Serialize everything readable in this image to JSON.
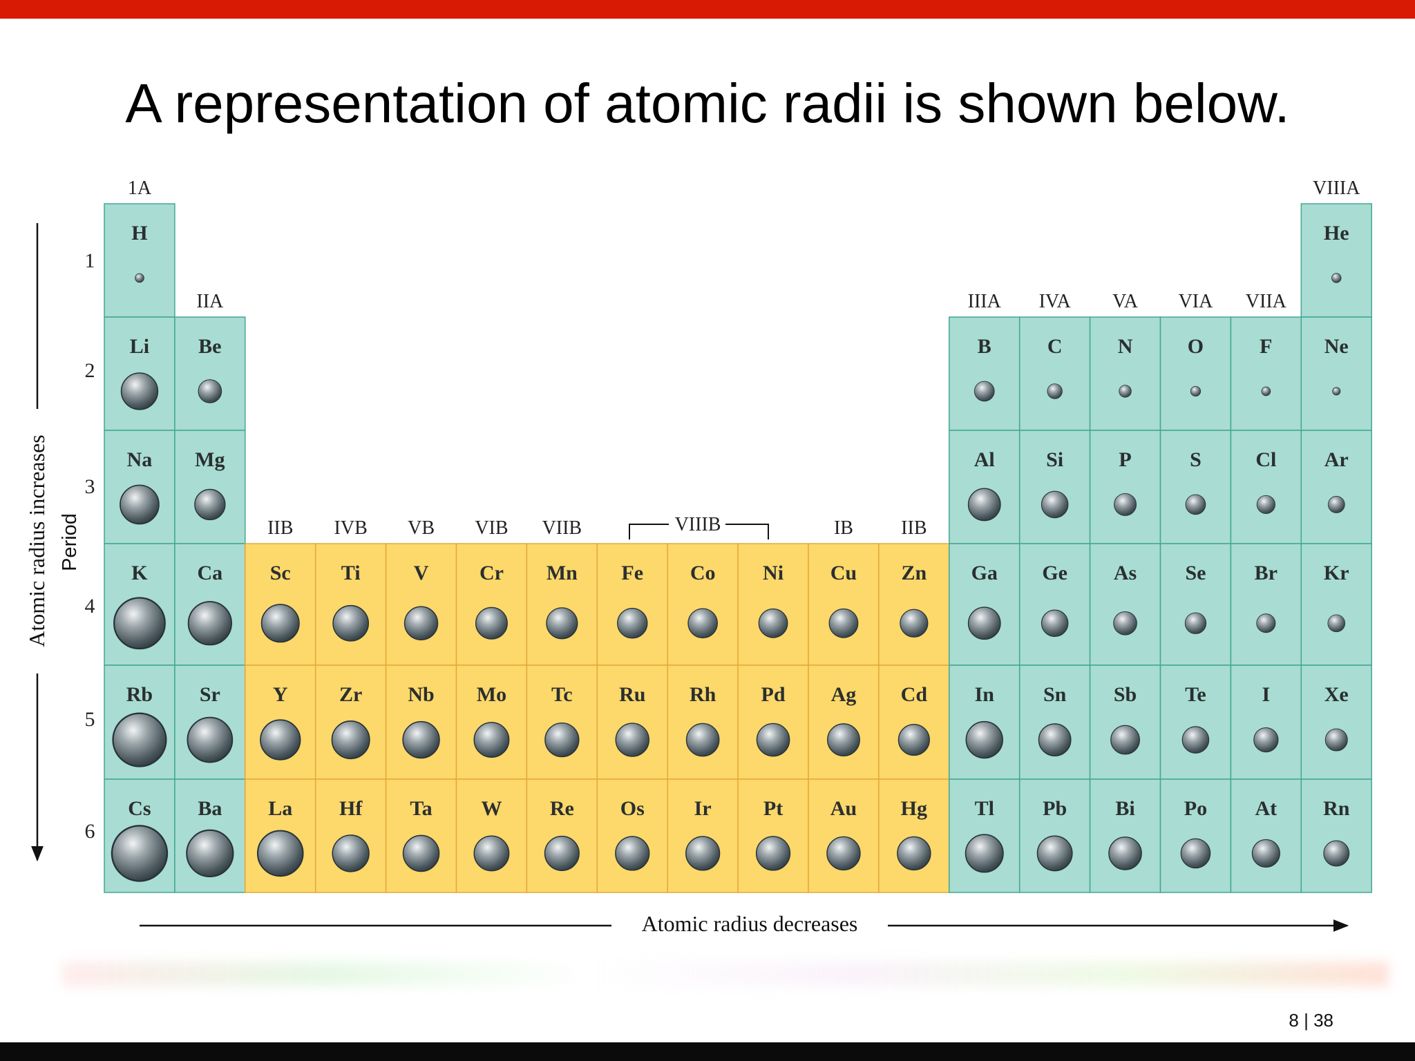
{
  "slide": {
    "title": "A representation of atomic radii is shown below.",
    "page_current": "8",
    "page_separator": "|",
    "page_total": "38"
  },
  "figure": {
    "left_axis_label": "Atomic radius increases",
    "period_label": "Period",
    "bottom_axis_label": "Atomic radius decreases",
    "colors": {
      "main_group": "#a9dcd2",
      "transition": "#fdd86a",
      "main_border": "#41a893",
      "transition_border": "#e4a939"
    },
    "periods": [
      "1",
      "2",
      "3",
      "4",
      "5",
      "6"
    ],
    "group_labels": [
      {
        "col": 1,
        "text": "1A",
        "row": 1
      },
      {
        "col": 2,
        "text": "IIA",
        "row": 2
      },
      {
        "col": 3,
        "text": "IIB",
        "row": 4
      },
      {
        "col": 4,
        "text": "IVB",
        "row": 4
      },
      {
        "col": 5,
        "text": "VB",
        "row": 4
      },
      {
        "col": 6,
        "text": "VIB",
        "row": 4
      },
      {
        "col": 7,
        "text": "VIIB",
        "row": 4
      },
      {
        "col": 11,
        "text": "IB",
        "row": 4
      },
      {
        "col": 12,
        "text": "IIB",
        "row": 4
      },
      {
        "col": 13,
        "text": "IIIA",
        "row": 2
      },
      {
        "col": 14,
        "text": "IVA",
        "row": 2
      },
      {
        "col": 15,
        "text": "VA",
        "row": 2
      },
      {
        "col": 16,
        "text": "VIA",
        "row": 2
      },
      {
        "col": 17,
        "text": "VIIA",
        "row": 2
      },
      {
        "col": 18,
        "text": "VIIIA",
        "row": 1
      }
    ],
    "viiib_label": "VIIIB",
    "elements": [
      {
        "symbol": "H",
        "row": 1,
        "col": 1,
        "radius": 0.16,
        "block": "main"
      },
      {
        "symbol": "He",
        "row": 1,
        "col": 18,
        "radius": 0.17,
        "block": "main"
      },
      {
        "symbol": "Li",
        "row": 2,
        "col": 1,
        "radius": 0.66,
        "block": "main"
      },
      {
        "symbol": "Be",
        "row": 2,
        "col": 2,
        "radius": 0.42,
        "block": "main"
      },
      {
        "symbol": "B",
        "row": 2,
        "col": 13,
        "radius": 0.36,
        "block": "main"
      },
      {
        "symbol": "C",
        "row": 2,
        "col": 14,
        "radius": 0.27,
        "block": "main"
      },
      {
        "symbol": "N",
        "row": 2,
        "col": 15,
        "radius": 0.22,
        "block": "main"
      },
      {
        "symbol": "O",
        "row": 2,
        "col": 16,
        "radius": 0.18,
        "block": "main"
      },
      {
        "symbol": "F",
        "row": 2,
        "col": 17,
        "radius": 0.16,
        "block": "main"
      },
      {
        "symbol": "Ne",
        "row": 2,
        "col": 18,
        "radius": 0.14,
        "block": "main"
      },
      {
        "symbol": "Na",
        "row": 3,
        "col": 1,
        "radius": 0.7,
        "block": "main"
      },
      {
        "symbol": "Mg",
        "row": 3,
        "col": 2,
        "radius": 0.55,
        "block": "main"
      },
      {
        "symbol": "Al",
        "row": 3,
        "col": 13,
        "radius": 0.58,
        "block": "main"
      },
      {
        "symbol": "Si",
        "row": 3,
        "col": 14,
        "radius": 0.48,
        "block": "main"
      },
      {
        "symbol": "P",
        "row": 3,
        "col": 15,
        "radius": 0.4,
        "block": "main"
      },
      {
        "symbol": "S",
        "row": 3,
        "col": 16,
        "radius": 0.36,
        "block": "main"
      },
      {
        "symbol": "Cl",
        "row": 3,
        "col": 17,
        "radius": 0.33,
        "block": "main"
      },
      {
        "symbol": "Ar",
        "row": 3,
        "col": 18,
        "radius": 0.3,
        "block": "main"
      },
      {
        "symbol": "K",
        "row": 4,
        "col": 1,
        "radius": 0.92,
        "block": "main"
      },
      {
        "symbol": "Ca",
        "row": 4,
        "col": 2,
        "radius": 0.78,
        "block": "main"
      },
      {
        "symbol": "Sc",
        "row": 4,
        "col": 3,
        "radius": 0.68,
        "block": "transition"
      },
      {
        "symbol": "Ti",
        "row": 4,
        "col": 4,
        "radius": 0.64,
        "block": "transition"
      },
      {
        "symbol": "V",
        "row": 4,
        "col": 5,
        "radius": 0.6,
        "block": "transition"
      },
      {
        "symbol": "Cr",
        "row": 4,
        "col": 6,
        "radius": 0.57,
        "block": "transition"
      },
      {
        "symbol": "Mn",
        "row": 4,
        "col": 7,
        "radius": 0.56,
        "block": "transition"
      },
      {
        "symbol": "Fe",
        "row": 4,
        "col": 8,
        "radius": 0.54,
        "block": "transition"
      },
      {
        "symbol": "Co",
        "row": 4,
        "col": 9,
        "radius": 0.53,
        "block": "transition"
      },
      {
        "symbol": "Ni",
        "row": 4,
        "col": 10,
        "radius": 0.52,
        "block": "transition"
      },
      {
        "symbol": "Cu",
        "row": 4,
        "col": 11,
        "radius": 0.52,
        "block": "transition"
      },
      {
        "symbol": "Zn",
        "row": 4,
        "col": 12,
        "radius": 0.5,
        "block": "transition"
      },
      {
        "symbol": "Ga",
        "row": 4,
        "col": 13,
        "radius": 0.58,
        "block": "main"
      },
      {
        "symbol": "Ge",
        "row": 4,
        "col": 14,
        "radius": 0.48,
        "block": "main"
      },
      {
        "symbol": "As",
        "row": 4,
        "col": 15,
        "radius": 0.42,
        "block": "main"
      },
      {
        "symbol": "Se",
        "row": 4,
        "col": 16,
        "radius": 0.38,
        "block": "main"
      },
      {
        "symbol": "Br",
        "row": 4,
        "col": 17,
        "radius": 0.34,
        "block": "main"
      },
      {
        "symbol": "Kr",
        "row": 4,
        "col": 18,
        "radius": 0.31,
        "block": "main"
      },
      {
        "symbol": "Rb",
        "row": 5,
        "col": 1,
        "radius": 0.96,
        "block": "main"
      },
      {
        "symbol": "Sr",
        "row": 5,
        "col": 2,
        "radius": 0.81,
        "block": "main"
      },
      {
        "symbol": "Y",
        "row": 5,
        "col": 3,
        "radius": 0.72,
        "block": "transition"
      },
      {
        "symbol": "Zr",
        "row": 5,
        "col": 4,
        "radius": 0.68,
        "block": "transition"
      },
      {
        "symbol": "Nb",
        "row": 5,
        "col": 5,
        "radius": 0.66,
        "block": "transition"
      },
      {
        "symbol": "Mo",
        "row": 5,
        "col": 6,
        "radius": 0.63,
        "block": "transition"
      },
      {
        "symbol": "Tc",
        "row": 5,
        "col": 7,
        "radius": 0.61,
        "block": "transition"
      },
      {
        "symbol": "Ru",
        "row": 5,
        "col": 8,
        "radius": 0.6,
        "block": "transition"
      },
      {
        "symbol": "Rh",
        "row": 5,
        "col": 9,
        "radius": 0.59,
        "block": "transition"
      },
      {
        "symbol": "Pd",
        "row": 5,
        "col": 10,
        "radius": 0.59,
        "block": "transition"
      },
      {
        "symbol": "Ag",
        "row": 5,
        "col": 11,
        "radius": 0.58,
        "block": "transition"
      },
      {
        "symbol": "Cd",
        "row": 5,
        "col": 12,
        "radius": 0.56,
        "block": "transition"
      },
      {
        "symbol": "In",
        "row": 5,
        "col": 13,
        "radius": 0.66,
        "block": "main"
      },
      {
        "symbol": "Sn",
        "row": 5,
        "col": 14,
        "radius": 0.58,
        "block": "main"
      },
      {
        "symbol": "Sb",
        "row": 5,
        "col": 15,
        "radius": 0.52,
        "block": "main"
      },
      {
        "symbol": "Te",
        "row": 5,
        "col": 16,
        "radius": 0.48,
        "block": "main"
      },
      {
        "symbol": "I",
        "row": 5,
        "col": 17,
        "radius": 0.44,
        "block": "main"
      },
      {
        "symbol": "Xe",
        "row": 5,
        "col": 18,
        "radius": 0.4,
        "block": "main"
      },
      {
        "symbol": "Cs",
        "row": 6,
        "col": 1,
        "radius": 1.0,
        "block": "main"
      },
      {
        "symbol": "Ba",
        "row": 6,
        "col": 2,
        "radius": 0.84,
        "block": "main"
      },
      {
        "symbol": "La",
        "row": 6,
        "col": 3,
        "radius": 0.82,
        "block": "transition"
      },
      {
        "symbol": "Hf",
        "row": 6,
        "col": 4,
        "radius": 0.66,
        "block": "transition"
      },
      {
        "symbol": "Ta",
        "row": 6,
        "col": 5,
        "radius": 0.65,
        "block": "transition"
      },
      {
        "symbol": "W",
        "row": 6,
        "col": 6,
        "radius": 0.63,
        "block": "transition"
      },
      {
        "symbol": "Re",
        "row": 6,
        "col": 7,
        "radius": 0.62,
        "block": "transition"
      },
      {
        "symbol": "Os",
        "row": 6,
        "col": 8,
        "radius": 0.61,
        "block": "transition"
      },
      {
        "symbol": "Ir",
        "row": 6,
        "col": 9,
        "radius": 0.61,
        "block": "transition"
      },
      {
        "symbol": "Pt",
        "row": 6,
        "col": 10,
        "radius": 0.61,
        "block": "transition"
      },
      {
        "symbol": "Au",
        "row": 6,
        "col": 11,
        "radius": 0.6,
        "block": "transition"
      },
      {
        "symbol": "Hg",
        "row": 6,
        "col": 12,
        "radius": 0.6,
        "block": "transition"
      },
      {
        "symbol": "Tl",
        "row": 6,
        "col": 13,
        "radius": 0.68,
        "block": "main"
      },
      {
        "symbol": "Pb",
        "row": 6,
        "col": 14,
        "radius": 0.63,
        "block": "main"
      },
      {
        "symbol": "Bi",
        "row": 6,
        "col": 15,
        "radius": 0.59,
        "block": "main"
      },
      {
        "symbol": "Po",
        "row": 6,
        "col": 16,
        "radius": 0.53,
        "block": "main"
      },
      {
        "symbol": "At",
        "row": 6,
        "col": 17,
        "radius": 0.5,
        "block": "main"
      },
      {
        "symbol": "Rn",
        "row": 6,
        "col": 18,
        "radius": 0.46,
        "block": "main"
      }
    ]
  }
}
